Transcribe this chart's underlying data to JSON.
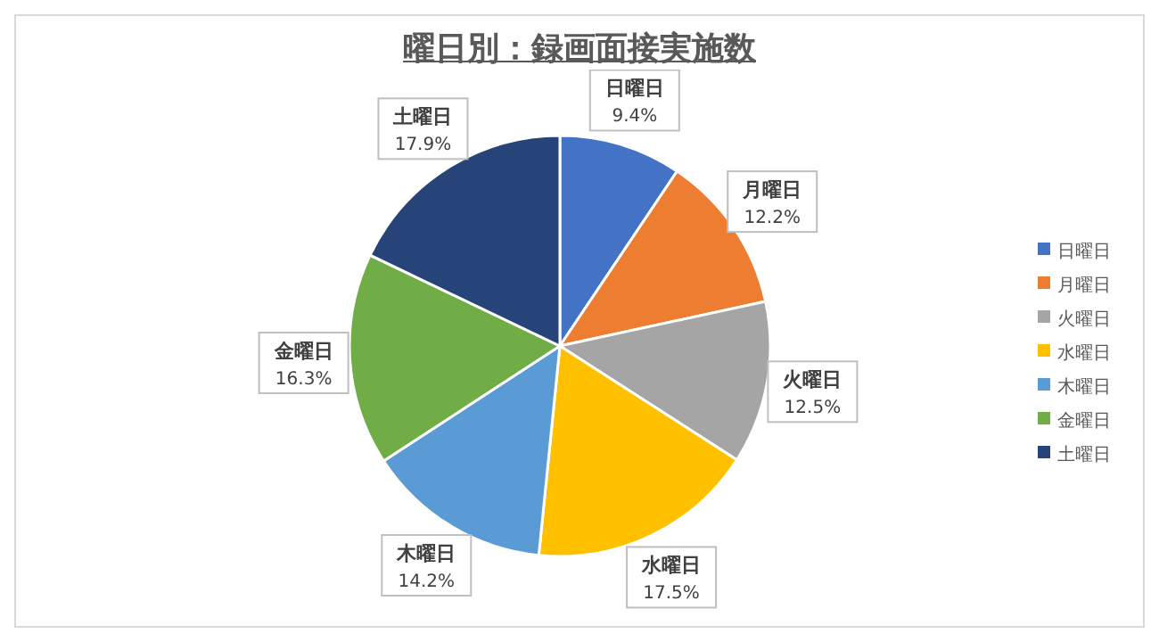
{
  "chart_data": {
    "type": "pie",
    "title": "曜日別：録画面接実施数",
    "categories": [
      "日曜日",
      "月曜日",
      "火曜日",
      "水曜日",
      "木曜日",
      "金曜日",
      "土曜日"
    ],
    "values": [
      9.4,
      12.2,
      12.5,
      17.5,
      14.2,
      16.3,
      17.9
    ],
    "value_labels": [
      "9.4%",
      "12.2%",
      "12.5%",
      "17.5%",
      "14.2%",
      "16.3%",
      "17.9%"
    ],
    "colors": [
      "#4472c4",
      "#ed7d31",
      "#a5a5a5",
      "#ffc000",
      "#5b9bd5",
      "#70ad47",
      "#264478"
    ],
    "legend": "right"
  }
}
